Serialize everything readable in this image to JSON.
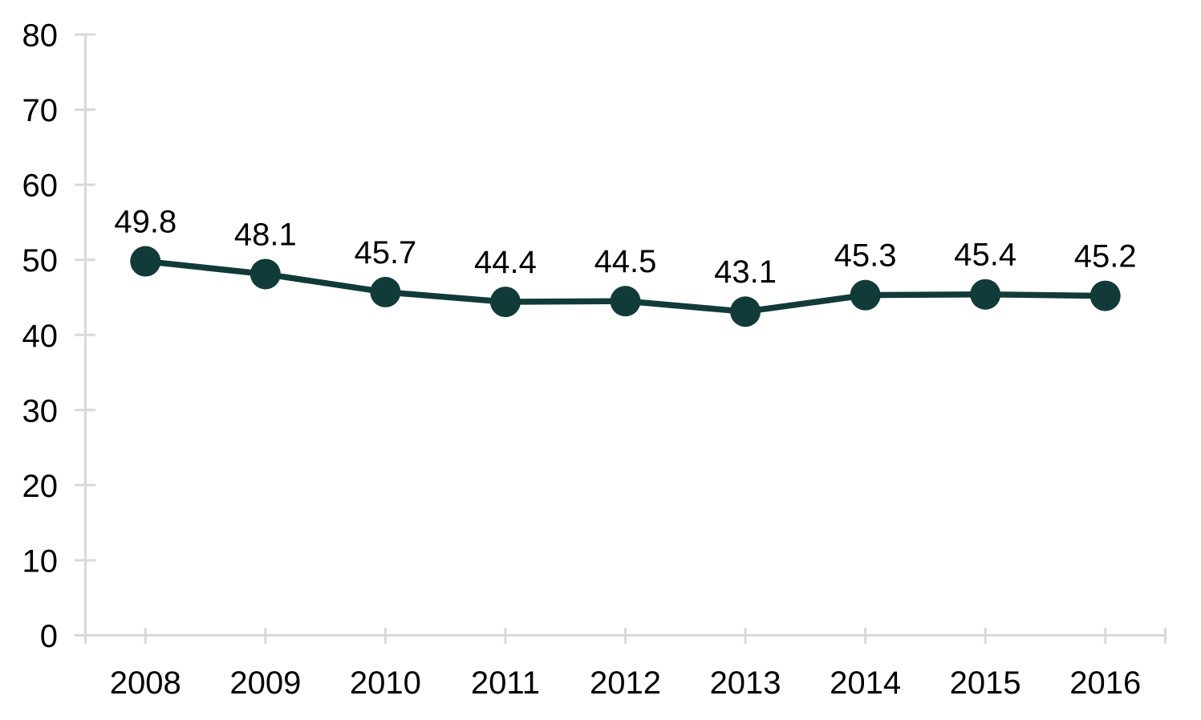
{
  "chart_data": {
    "type": "line",
    "title": "",
    "xlabel": "",
    "ylabel": "",
    "categories": [
      "2008",
      "2009",
      "2010",
      "2011",
      "2012",
      "2013",
      "2014",
      "2015",
      "2016"
    ],
    "series": [
      {
        "name": "series-1",
        "values": [
          49.8,
          48.1,
          45.7,
          44.4,
          44.5,
          43.1,
          45.3,
          45.4,
          45.2
        ]
      }
    ],
    "data_labels": [
      "49.8",
      "48.1",
      "45.7",
      "44.4",
      "44.5",
      "43.1",
      "45.3",
      "45.4",
      "45.2"
    ],
    "ylim": [
      0,
      80
    ],
    "ytick_step": 10,
    "ytick_labels": [
      "0",
      "10",
      "20",
      "30",
      "40",
      "50",
      "60",
      "70",
      "80"
    ],
    "grid": false,
    "legend_position": "none",
    "marker_style": "filled-circle",
    "colors": {
      "line": "#113b38",
      "marker": "#113b38",
      "axis": "#d9d9d9",
      "text": "#000000",
      "background": "#ffffff"
    }
  }
}
